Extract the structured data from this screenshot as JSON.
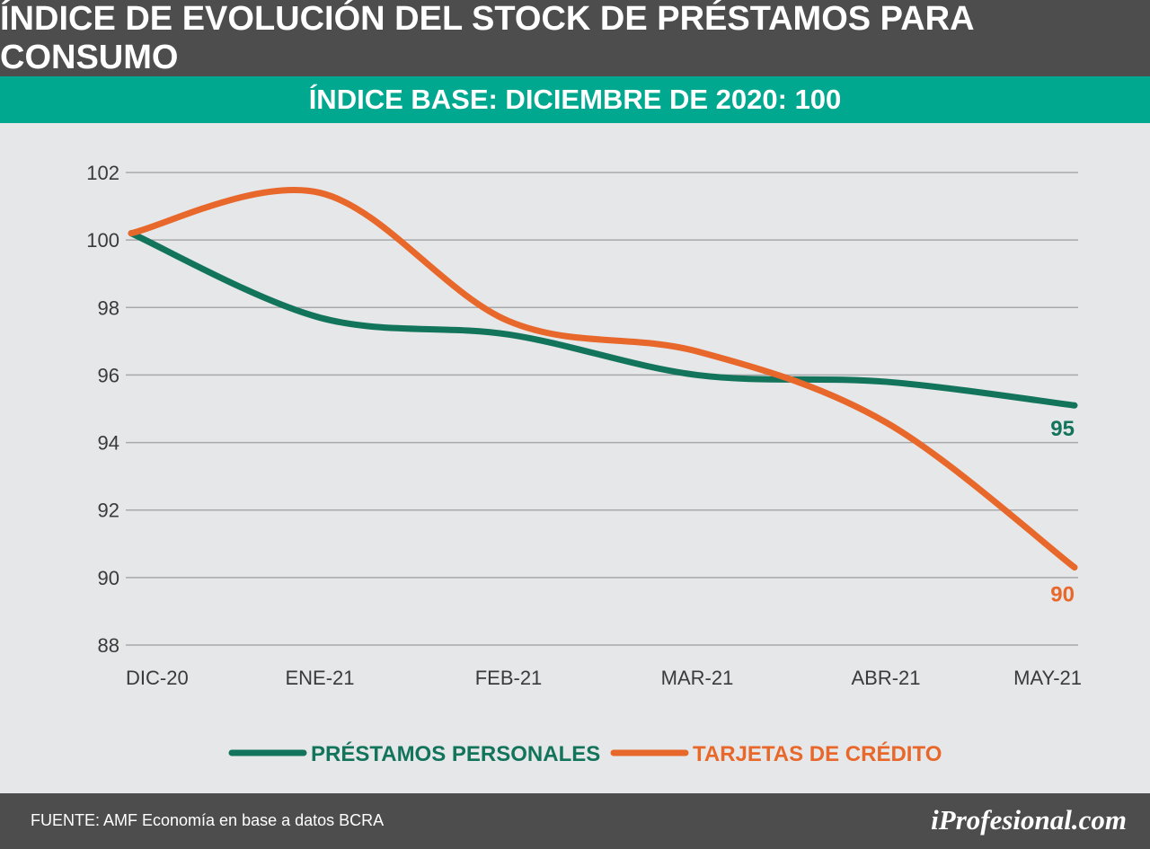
{
  "header": {
    "title": "ÍNDICE DE EVOLUCIÓN DEL STOCK DE PRÉSTAMOS PARA CONSUMO",
    "subtitle": "ÍNDICE BASE: DICIEMBRE DE 2020: 100"
  },
  "footer": {
    "source": "FUENTE: AMF Economía en base a datos BCRA",
    "brand": "iProfesional.com"
  },
  "colors": {
    "header_bg": "#4d4d4d",
    "subtitle_bg": "#00a890",
    "series_personales": "#13745c",
    "series_tarjetas": "#e8672a",
    "grid": "#a7a9ac",
    "background": "#e6e7e8"
  },
  "chart_data": {
    "type": "line",
    "categories": [
      "DIC-20",
      "ENE-21",
      "FEB-21",
      "MAR-21",
      "ABR-21",
      "MAY-21"
    ],
    "yticks": [
      "88",
      "90",
      "92",
      "94",
      "96",
      "98",
      "100",
      "102"
    ],
    "ylim": [
      88,
      102
    ],
    "grid": true,
    "legend_position": "bottom",
    "series": [
      {
        "name": "PRÉSTAMOS PERSONALES",
        "color": "#13745c",
        "values": [
          100.2,
          97.7,
          97.2,
          96.0,
          95.8,
          95.1
        ],
        "end_label": "95"
      },
      {
        "name": "TARJETAS DE CRÉDITO",
        "color": "#e8672a",
        "values": [
          100.2,
          101.4,
          97.6,
          96.7,
          94.6,
          90.3
        ],
        "end_label": "90"
      }
    ]
  }
}
